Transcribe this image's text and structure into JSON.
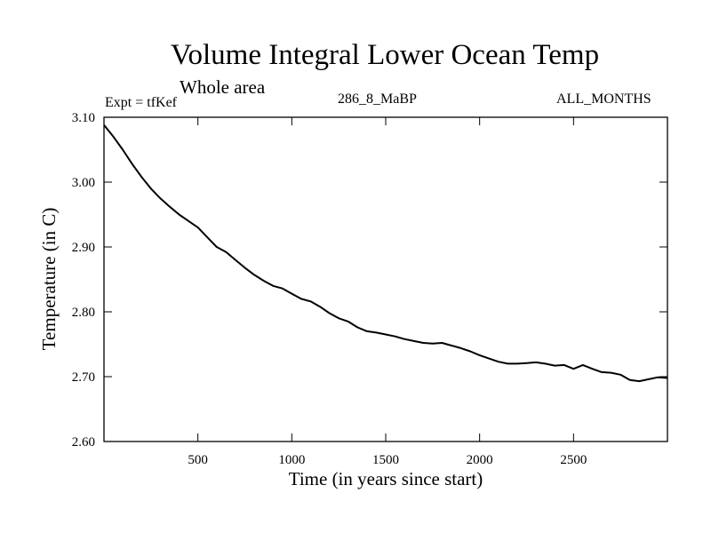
{
  "chart_data": {
    "type": "line",
    "title": "Volume Integral Lower Ocean Temp",
    "subtitle": "Whole area",
    "experiment_label": "Expt = tfKef",
    "run_label": "286_8_MaBP",
    "months_label": "ALL_MONTHS",
    "xlabel": "Time (in years since start)",
    "ylabel": "Temperature (in C)",
    "xlim": [
      0,
      3000
    ],
    "ylim": [
      2.6,
      3.1
    ],
    "x_ticks": [
      500,
      1000,
      1500,
      2000,
      2500
    ],
    "y_ticks": [
      2.6,
      2.7,
      2.8,
      2.9,
      3.0,
      3.1
    ],
    "x_tick_labels": [
      "500",
      "1000",
      "1500",
      "2000",
      "2500"
    ],
    "y_tick_labels": [
      "2.60",
      "2.70",
      "2.80",
      "2.90",
      "3.00",
      "3.10"
    ],
    "grid": false,
    "line_color": "#000000",
    "series": [
      {
        "x": [
          0,
          50,
          100,
          150,
          200,
          250,
          300,
          350,
          400,
          450,
          500,
          550,
          600,
          650,
          700,
          750,
          800,
          850,
          900,
          950,
          1000,
          1050,
          1100,
          1150,
          1200,
          1250,
          1300,
          1350,
          1400,
          1450,
          1500,
          1550,
          1600,
          1650,
          1700,
          1750,
          1800,
          1850,
          1900,
          1950,
          2000,
          2050,
          2100,
          2150,
          2200,
          2250,
          2300,
          2350,
          2400,
          2450,
          2500,
          2550,
          2600,
          2650,
          2700,
          2750,
          2800,
          2850,
          2900,
          2950,
          3000
        ],
        "values": [
          3.088,
          3.07,
          3.05,
          3.028,
          3.008,
          2.99,
          2.975,
          2.962,
          2.95,
          2.94,
          2.93,
          2.915,
          2.9,
          2.892,
          2.88,
          2.868,
          2.857,
          2.848,
          2.84,
          2.836,
          2.828,
          2.82,
          2.816,
          2.808,
          2.798,
          2.79,
          2.785,
          2.776,
          2.77,
          2.768,
          2.765,
          2.762,
          2.758,
          2.755,
          2.752,
          2.751,
          2.752,
          2.748,
          2.744,
          2.739,
          2.733,
          2.728,
          2.723,
          2.72,
          2.72,
          2.721,
          2.722,
          2.72,
          2.717,
          2.718,
          2.712,
          2.718,
          2.712,
          2.707,
          2.706,
          2.703,
          2.695,
          2.693,
          2.696,
          2.699,
          2.698
        ]
      }
    ]
  }
}
